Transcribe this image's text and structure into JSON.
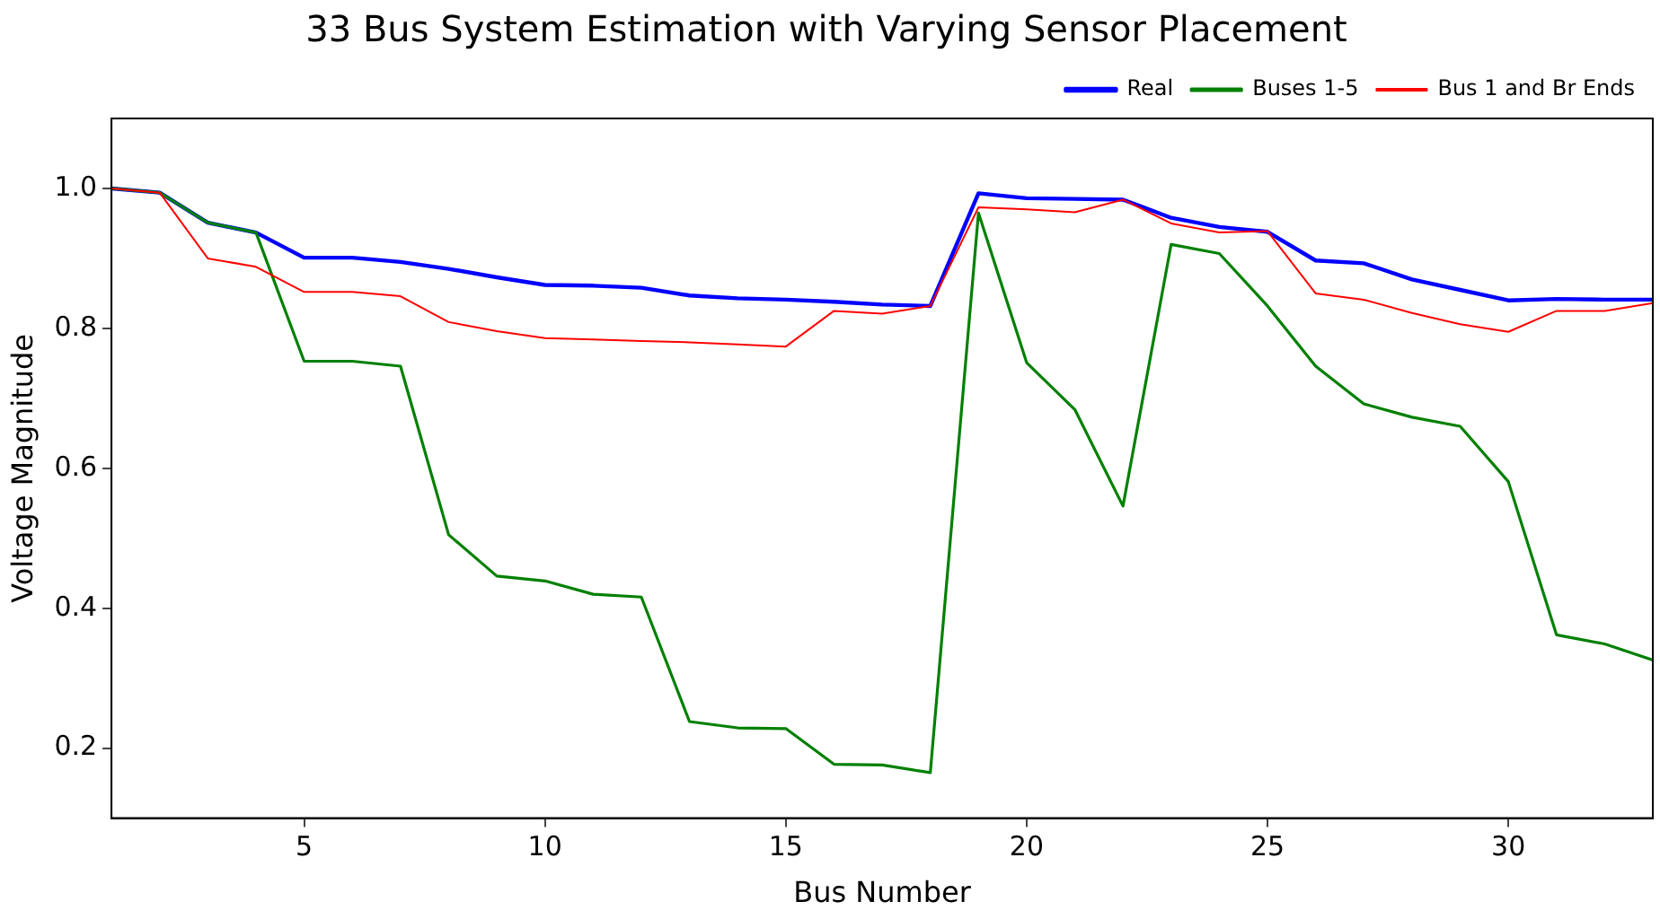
{
  "chart_data": {
    "type": "line",
    "title": "33 Bus System Estimation with Varying Sensor Placement",
    "xlabel": "Bus Number",
    "ylabel": "Voltage Magnitude",
    "x": [
      1,
      2,
      3,
      4,
      5,
      6,
      7,
      8,
      9,
      10,
      11,
      12,
      13,
      14,
      15,
      16,
      17,
      18,
      19,
      20,
      21,
      22,
      23,
      24,
      25,
      26,
      27,
      28,
      29,
      30,
      31,
      32,
      33
    ],
    "series": [
      {
        "name": "Real",
        "color": "#0000ff",
        "values": [
          1.0,
          0.994,
          0.951,
          0.937,
          0.901,
          0.901,
          0.895,
          0.885,
          0.873,
          0.862,
          0.861,
          0.858,
          0.847,
          0.843,
          0.841,
          0.838,
          0.834,
          0.832,
          0.993,
          0.986,
          0.985,
          0.984,
          0.958,
          0.945,
          0.938,
          0.897,
          0.893,
          0.87,
          0.855,
          0.84,
          0.842,
          0.841,
          0.841
        ]
      },
      {
        "name": "Buses 1-5",
        "color": "#008000",
        "values": [
          1.0,
          0.994,
          0.951,
          0.937,
          0.753,
          0.753,
          0.746,
          0.505,
          0.446,
          0.439,
          0.42,
          0.416,
          0.238,
          0.229,
          0.228,
          0.177,
          0.176,
          0.165,
          0.965,
          0.751,
          0.684,
          0.546,
          0.92,
          0.907,
          0.832,
          0.746,
          0.692,
          0.673,
          0.66,
          0.581,
          0.362,
          0.349,
          0.326
        ]
      },
      {
        "name": "Bus 1 and Br Ends",
        "color": "#ff0000",
        "values": [
          1.0,
          0.994,
          0.9,
          0.888,
          0.852,
          0.852,
          0.846,
          0.809,
          0.796,
          0.786,
          0.784,
          0.782,
          0.78,
          0.777,
          0.774,
          0.825,
          0.821,
          0.832,
          0.973,
          0.97,
          0.966,
          0.984,
          0.95,
          0.937,
          0.939,
          0.85,
          0.841,
          0.822,
          0.806,
          0.795,
          0.825,
          0.825,
          0.836
        ]
      }
    ],
    "xlim": [
      1,
      33
    ],
    "xticks": [
      5,
      10,
      15,
      20,
      25,
      30
    ],
    "ylim": [
      0.1,
      1.1
    ],
    "yticks": [
      0.2,
      0.4,
      0.6,
      0.8,
      {
        "value": 1,
        "label": "1.0"
      }
    ],
    "grid": false,
    "legend": "top right",
    "marker": "none",
    "line_style": "solid"
  }
}
